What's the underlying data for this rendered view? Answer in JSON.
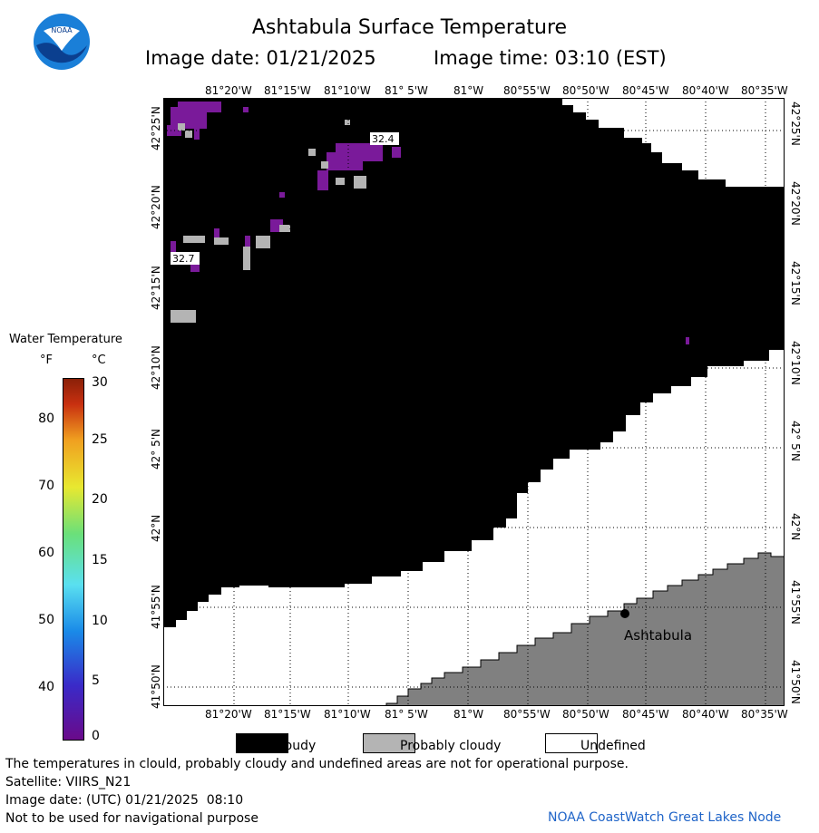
{
  "header": {
    "title": "Ashtabula Surface Temperature",
    "image_date": "Image date: 01/21/2025",
    "image_time": "Image time: 03:10 (EST)"
  },
  "logo": {
    "text": "NOAA"
  },
  "map": {
    "lon_labels": [
      "81°20'W",
      "81°15'W",
      "81°10'W",
      "81° 5'W",
      "81°W",
      "80°55'W",
      "80°50'W",
      "80°45'W",
      "80°40'W",
      "80°35'W"
    ],
    "lat_labels": [
      "42°25'N",
      "42°20'N",
      "42°15'N",
      "42°10'N",
      "42° 5'N",
      "42°N",
      "41°55'N",
      "41°50'N"
    ],
    "point_labels": [
      "32.4",
      "32.7"
    ],
    "city": "Ashtabula",
    "colors": {
      "cloudy": "#000000",
      "probably_cloudy": "#b4b4b4",
      "land": "#808080",
      "undefined": "#ffffff",
      "ice_temp": "#7a1a9a"
    }
  },
  "legend": {
    "title": "Water Temperature",
    "unit_f": "°F",
    "unit_c": "°C",
    "f_ticks": [
      "80",
      "70",
      "60",
      "50",
      "40"
    ],
    "c_ticks": [
      "30",
      "25",
      "20",
      "15",
      "10",
      "5",
      "0"
    ]
  },
  "key": {
    "cloudy": "Cloudy",
    "probably_cloudy": "Probably cloudy",
    "undefined": "Undefined"
  },
  "footer": {
    "disclaimer": "The temperatures in clould, probably cloudy and undefined areas are not for operational purpose.",
    "satellite": "Satellite: VIIRS_N21",
    "utc_date": "Image date: (UTC) 01/21/2025  08:10",
    "navigation": "Not to be used for navigational purpose",
    "credit": "NOAA CoastWatch Great Lakes Node"
  }
}
